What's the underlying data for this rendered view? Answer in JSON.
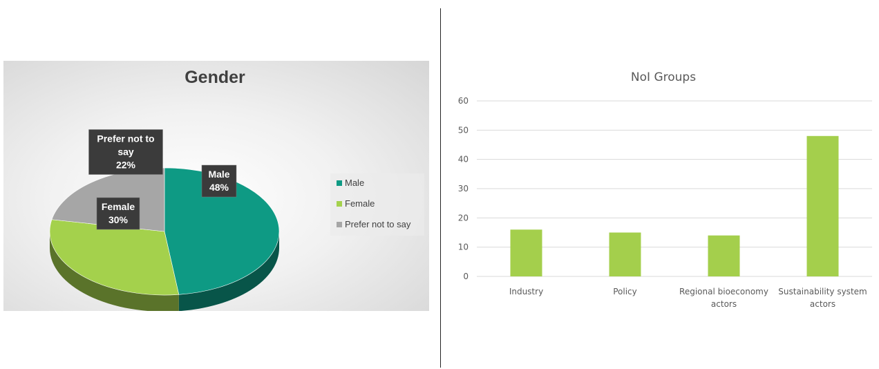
{
  "chart_data": [
    {
      "type": "pie",
      "title": "Gender",
      "categories": [
        "Male",
        "Female",
        "Prefer not to say"
      ],
      "values": [
        48,
        30,
        22
      ],
      "labels": [
        {
          "lines": [
            "Male",
            "48%"
          ]
        },
        {
          "lines": [
            "Female",
            "30%"
          ]
        },
        {
          "lines": [
            "Prefer not to",
            "say",
            "22%"
          ]
        }
      ],
      "colors": [
        "#0e9a84",
        "#a4d14c",
        "#a6a6a6"
      ],
      "legend": [
        "Male",
        "Female",
        "Prefer not to say"
      ],
      "legend_position": "right"
    },
    {
      "type": "bar",
      "title": "NoI Groups",
      "categories": [
        {
          "lines": [
            "Industry"
          ]
        },
        {
          "lines": [
            "Policy"
          ]
        },
        {
          "lines": [
            "Regional bioeconomy",
            "actors"
          ]
        },
        {
          "lines": [
            "Sustainability system",
            "actors"
          ]
        }
      ],
      "values": [
        16,
        15,
        14,
        48
      ],
      "ylim": [
        0,
        60
      ],
      "yticks": [
        "0",
        "10",
        "20",
        "30",
        "40",
        "50",
        "60"
      ],
      "color": "#a4cf4c",
      "grid": true
    }
  ]
}
